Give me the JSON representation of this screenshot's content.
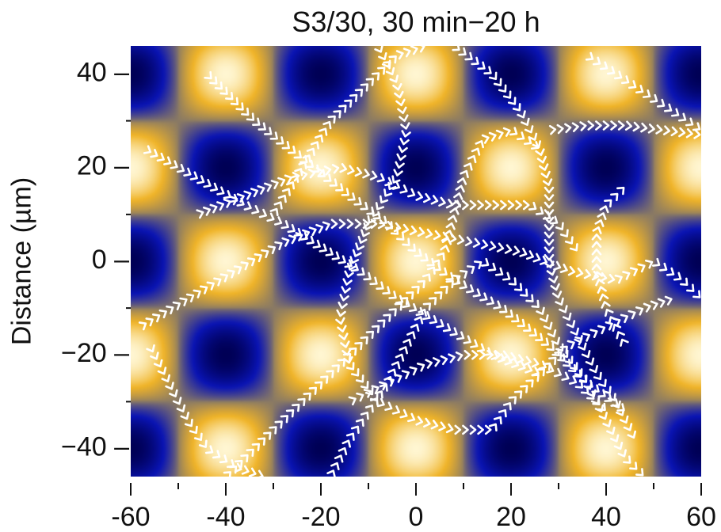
{
  "chart_data": {
    "type": "heatmap",
    "title": "S3/30, 30 min−20 h",
    "xlabel": "",
    "ylabel": "Distance (µm)",
    "xlim": [
      -60,
      60
    ],
    "ylim": [
      -46,
      46
    ],
    "x_ticks": [
      -60,
      -40,
      -20,
      0,
      20,
      40,
      60
    ],
    "x_tick_labels": [
      "-60",
      "-40",
      "-20",
      "0",
      "20",
      "40",
      "60"
    ],
    "y_ticks": [
      40,
      20,
      0,
      -20,
      -40
    ],
    "y_tick_labels": [
      "40 –",
      "20 –",
      "0 –",
      "−20 –",
      "−40 –"
    ],
    "field": {
      "description_function": "cos(2πx/P)·cos(2πy/P)",
      "period": 40,
      "colormap": [
        "#000055",
        "#0a14b4",
        "#8a7a64",
        "#f0b428",
        "#fff6d2"
      ],
      "maxima_centers": [
        [
          -40,
          0
        ],
        [
          0,
          0
        ],
        [
          40,
          0
        ],
        [
          -20,
          20
        ],
        [
          20,
          20
        ],
        [
          -20,
          -20
        ],
        [
          20,
          -20
        ],
        [
          -40,
          40
        ],
        [
          0,
          40
        ],
        [
          40,
          40
        ],
        [
          -40,
          -40
        ],
        [
          0,
          -40
        ],
        [
          40,
          -40
        ],
        [
          -60,
          20
        ],
        [
          60,
          20
        ],
        [
          -60,
          -20
        ],
        [
          60,
          -20
        ]
      ],
      "minima_centers": [
        [
          -20,
          0
        ],
        [
          20,
          0
        ],
        [
          -40,
          20
        ],
        [
          0,
          20
        ],
        [
          40,
          20
        ],
        [
          -40,
          -20
        ],
        [
          0,
          -20
        ],
        [
          40,
          -20
        ],
        [
          -20,
          40
        ],
        [
          20,
          40
        ],
        [
          -20,
          -40
        ],
        [
          20,
          -40
        ],
        [
          -60,
          0
        ],
        [
          60,
          0
        ],
        [
          -60,
          40
        ],
        [
          60,
          40
        ],
        [
          -60,
          -40
        ],
        [
          60,
          -40
        ]
      ]
    },
    "trajectories": [
      {
        "points": [
          [
            -44,
            40
          ],
          [
            -34,
            30
          ],
          [
            -24,
            22
          ],
          [
            -14,
            14
          ],
          [
            -6,
            8
          ],
          [
            0,
            2
          ],
          [
            8,
            -4
          ],
          [
            18,
            -10
          ],
          [
            28,
            -18
          ],
          [
            36,
            -26
          ],
          [
            44,
            -32
          ]
        ]
      },
      {
        "points": [
          [
            -57,
            24
          ],
          [
            -50,
            20
          ],
          [
            -43,
            16
          ],
          [
            -36,
            12
          ],
          [
            -28,
            8
          ],
          [
            -20,
            3
          ],
          [
            -12,
            -2
          ],
          [
            -4,
            -8
          ],
          [
            6,
            -14
          ],
          [
            16,
            -20
          ],
          [
            26,
            -24
          ]
        ]
      },
      {
        "points": [
          [
            -46,
            10
          ],
          [
            -36,
            14
          ],
          [
            -26,
            18
          ],
          [
            -16,
            20
          ],
          [
            -8,
            18
          ],
          [
            0,
            14
          ],
          [
            8,
            12
          ],
          [
            16,
            12
          ],
          [
            24,
            12
          ],
          [
            30,
            8
          ],
          [
            34,
            2
          ]
        ]
      },
      {
        "points": [
          [
            -58,
            -14
          ],
          [
            -48,
            -8
          ],
          [
            -38,
            -2
          ],
          [
            -28,
            4
          ],
          [
            -18,
            8
          ],
          [
            -8,
            8
          ],
          [
            2,
            6
          ],
          [
            12,
            4
          ],
          [
            22,
            2
          ],
          [
            32,
            -2
          ],
          [
            42,
            -4
          ],
          [
            50,
            0
          ],
          [
            56,
            -4
          ],
          [
            60,
            -8
          ]
        ]
      },
      {
        "points": [
          [
            -56,
            -18
          ],
          [
            -52,
            -26
          ],
          [
            -48,
            -34
          ],
          [
            -44,
            -40
          ],
          [
            -38,
            -44
          ],
          [
            -32,
            -46
          ]
        ]
      },
      {
        "points": [
          [
            -40,
            -46
          ],
          [
            -34,
            -40
          ],
          [
            -28,
            -34
          ],
          [
            -22,
            -28
          ],
          [
            -16,
            -22
          ],
          [
            -10,
            -16
          ],
          [
            -4,
            -10
          ],
          [
            2,
            -4
          ],
          [
            6,
            2
          ],
          [
            8,
            10
          ],
          [
            10,
            18
          ],
          [
            14,
            26
          ],
          [
            20,
            28
          ],
          [
            26,
            24
          ]
        ]
      },
      {
        "points": [
          [
            -30,
            10
          ],
          [
            -24,
            20
          ],
          [
            -18,
            30
          ],
          [
            -10,
            38
          ],
          [
            -4,
            44
          ],
          [
            2,
            46
          ]
        ]
      },
      {
        "points": [
          [
            -8,
            46
          ],
          [
            -4,
            38
          ],
          [
            -2,
            28
          ],
          [
            -4,
            18
          ],
          [
            -10,
            8
          ],
          [
            -14,
            -2
          ],
          [
            -16,
            -12
          ],
          [
            -14,
            -22
          ],
          [
            -8,
            -30
          ],
          [
            0,
            -34
          ],
          [
            8,
            -36
          ],
          [
            16,
            -36
          ],
          [
            20,
            -30
          ],
          [
            26,
            -24
          ],
          [
            32,
            -18
          ],
          [
            40,
            -14
          ],
          [
            48,
            -10
          ],
          [
            54,
            -8
          ]
        ]
      },
      {
        "points": [
          [
            -18,
            -46
          ],
          [
            -14,
            -38
          ],
          [
            -10,
            -32
          ],
          [
            -6,
            -26
          ],
          [
            -2,
            -18
          ],
          [
            2,
            -10
          ],
          [
            8,
            -4
          ],
          [
            14,
            0
          ],
          [
            20,
            -4
          ],
          [
            26,
            -10
          ],
          [
            30,
            -18
          ],
          [
            36,
            -26
          ],
          [
            40,
            -34
          ],
          [
            44,
            -42
          ],
          [
            48,
            -46
          ]
        ]
      },
      {
        "points": [
          [
            8,
            46
          ],
          [
            16,
            40
          ],
          [
            22,
            32
          ],
          [
            26,
            24
          ],
          [
            28,
            16
          ],
          [
            28,
            8
          ],
          [
            28,
            0
          ],
          [
            30,
            -8
          ],
          [
            34,
            -16
          ],
          [
            38,
            -24
          ],
          [
            42,
            -30
          ],
          [
            46,
            -38
          ]
        ]
      },
      {
        "points": [
          [
            28,
            28
          ],
          [
            36,
            29
          ],
          [
            44,
            29
          ],
          [
            52,
            28
          ],
          [
            60,
            27
          ]
        ]
      },
      {
        "points": [
          [
            36,
            44
          ],
          [
            42,
            40
          ],
          [
            48,
            36
          ],
          [
            54,
            32
          ],
          [
            60,
            28
          ]
        ]
      },
      {
        "points": [
          [
            -14,
            -30
          ],
          [
            -6,
            -26
          ],
          [
            2,
            -22
          ],
          [
            10,
            -20
          ],
          [
            18,
            -20
          ],
          [
            26,
            -22
          ],
          [
            34,
            -26
          ],
          [
            40,
            -32
          ]
        ]
      },
      {
        "points": [
          [
            44,
            -18
          ],
          [
            40,
            -10
          ],
          [
            38,
            -2
          ],
          [
            38,
            6
          ],
          [
            40,
            12
          ],
          [
            44,
            16
          ]
        ]
      }
    ]
  }
}
